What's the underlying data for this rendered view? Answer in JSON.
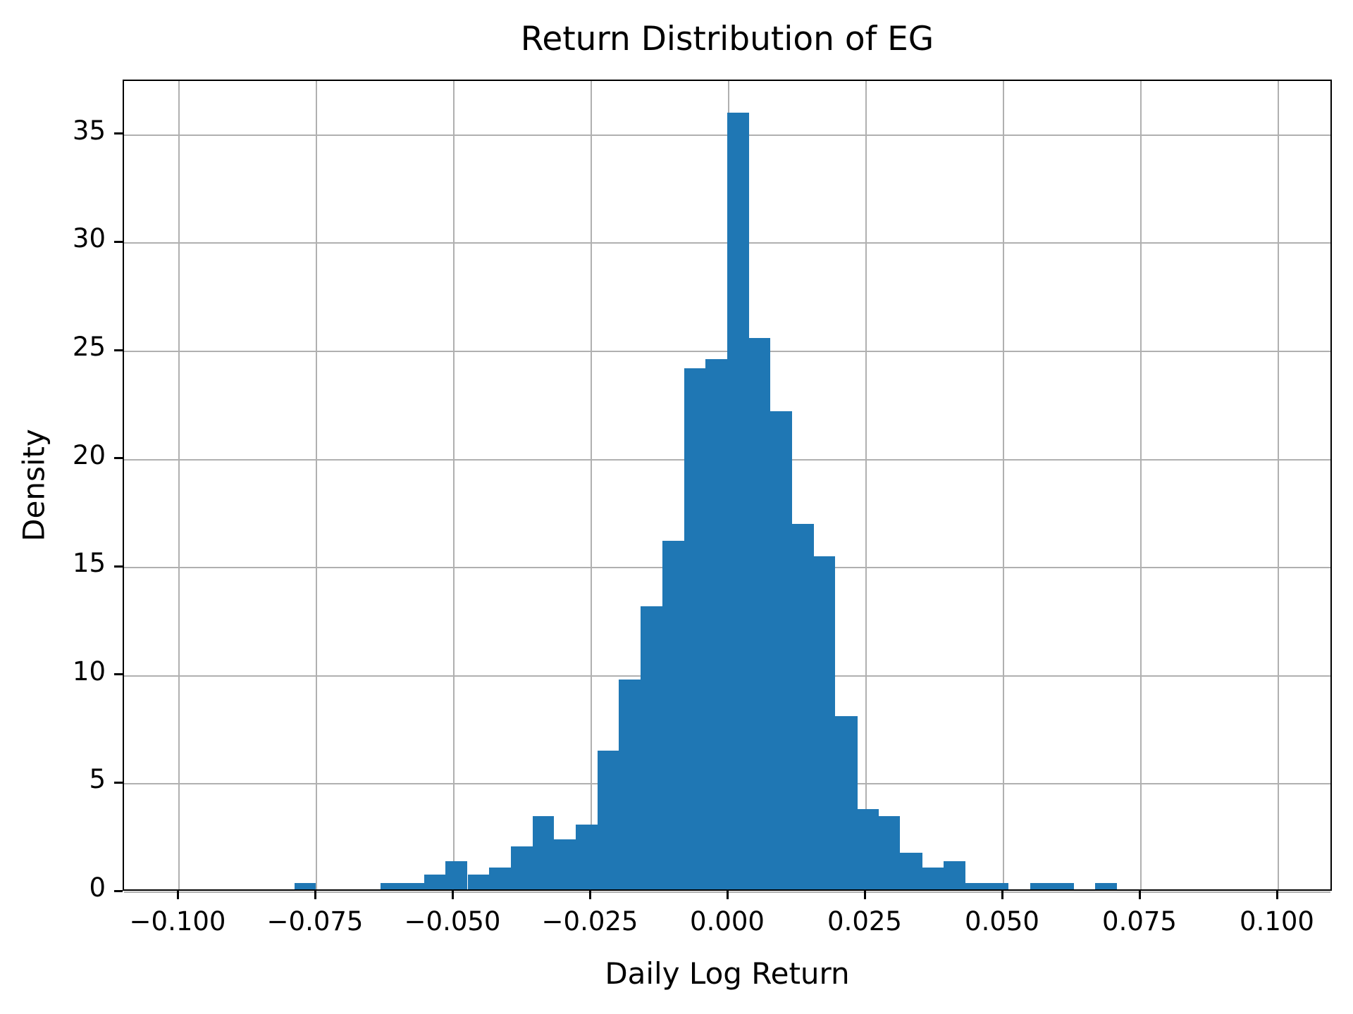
{
  "chart_data": {
    "type": "bar",
    "subtype": "histogram",
    "title": "Return Distribution of EG",
    "xlabel": "Daily Log Return",
    "ylabel": "Density",
    "bar_color": "#1f77b4",
    "grid_color": "#b0b0b0",
    "grid": "on",
    "legend": "none",
    "xlim": [
      -0.11,
      0.11
    ],
    "ylim": [
      0,
      37.5
    ],
    "x_ticks": [
      {
        "value": -0.1,
        "label": "−0.100"
      },
      {
        "value": -0.075,
        "label": "−0.075"
      },
      {
        "value": -0.05,
        "label": "−0.050"
      },
      {
        "value": -0.025,
        "label": "−0.025"
      },
      {
        "value": 0.0,
        "label": "0.000"
      },
      {
        "value": 0.025,
        "label": "0.025"
      },
      {
        "value": 0.05,
        "label": "0.050"
      },
      {
        "value": 0.075,
        "label": "0.075"
      },
      {
        "value": 0.1,
        "label": "0.100"
      }
    ],
    "y_ticks": [
      {
        "value": 0,
        "label": "0"
      },
      {
        "value": 5,
        "label": "5"
      },
      {
        "value": 10,
        "label": "10"
      },
      {
        "value": 15,
        "label": "15"
      },
      {
        "value": 20,
        "label": "20"
      },
      {
        "value": 25,
        "label": "25"
      },
      {
        "value": 30,
        "label": "30"
      },
      {
        "value": 35,
        "label": "35"
      }
    ],
    "bin_edges": [
      -0.079,
      -0.0751,
      -0.0711,
      -0.0672,
      -0.0633,
      -0.0593,
      -0.0554,
      -0.0515,
      -0.0475,
      -0.0436,
      -0.0396,
      -0.0357,
      -0.0318,
      -0.0278,
      -0.0239,
      -0.02,
      -0.016,
      -0.0121,
      -0.0081,
      -0.0042,
      -0.0003,
      0.0037,
      0.0076,
      0.0115,
      0.0155,
      0.0194,
      0.0234,
      0.0273,
      0.0312,
      0.0352,
      0.0391,
      0.0431,
      0.047,
      0.0509,
      0.0549,
      0.0588,
      0.0628,
      0.0667,
      0.0706
    ],
    "densities": [
      0.3,
      0,
      0,
      0,
      0.3,
      0.3,
      0.7,
      1.3,
      0.7,
      1.0,
      2.0,
      3.4,
      2.3,
      3.0,
      6.4,
      9.7,
      13.1,
      16.1,
      24.1,
      24.5,
      35.9,
      25.5,
      22.1,
      16.9,
      15.4,
      8.0,
      3.7,
      3.4,
      1.7,
      1.0,
      1.3,
      0.3,
      0.3,
      0,
      0.3,
      0.3,
      0,
      0.3
    ]
  }
}
